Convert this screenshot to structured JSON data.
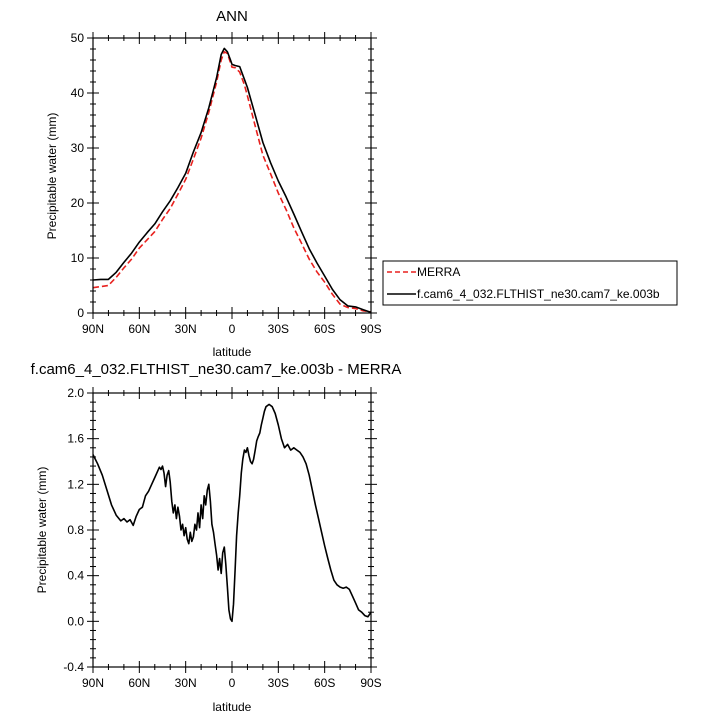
{
  "chart_data": [
    {
      "type": "line",
      "title": "ANN",
      "xlabel": "latitude",
      "ylabel": "Precipitable water (mm)",
      "xlim": [
        90,
        -90
      ],
      "ylim": [
        0,
        50
      ],
      "x_ticks": [
        90,
        60,
        30,
        0,
        -30,
        -60,
        -90
      ],
      "x_tick_labels": [
        "90N",
        "60N",
        "30N",
        "0",
        "30S",
        "60S",
        "90S"
      ],
      "y_ticks": [
        0,
        10,
        20,
        30,
        40,
        50
      ],
      "y_tick_labels": [
        "0",
        "10",
        "20",
        "30",
        "40",
        "50"
      ],
      "legend_position": "right",
      "series": [
        {
          "name": "MERRA",
          "color": "#e8211e",
          "style": "dashed",
          "x": [
            90,
            85,
            80,
            75,
            70,
            65,
            60,
            55,
            50,
            45,
            40,
            35,
            30,
            25,
            20,
            15,
            10,
            7,
            5,
            3,
            1,
            0,
            -2,
            -5,
            -8,
            -10,
            -15,
            -20,
            -25,
            -30,
            -35,
            -40,
            -45,
            -50,
            -55,
            -60,
            -65,
            -70,
            -75,
            -80,
            -85,
            -90
          ],
          "y": [
            4.6,
            4.8,
            5.0,
            6.5,
            8.2,
            9.8,
            11.8,
            13.3,
            14.8,
            17.0,
            19.0,
            21.6,
            24.3,
            28.0,
            31.8,
            36.5,
            42.0,
            46.0,
            47.5,
            47.2,
            45.5,
            44.7,
            44.6,
            43.8,
            41.5,
            39.5,
            34.0,
            28.7,
            25.3,
            21.8,
            18.8,
            15.5,
            12.7,
            9.8,
            7.5,
            5.6,
            3.4,
            1.6,
            1.0,
            0.8,
            0.4,
            0.2
          ]
        },
        {
          "name": "f.cam6_4_032.FLTHIST_ne30.cam7_ke.003b",
          "color": "#000000",
          "style": "solid",
          "x": [
            90,
            85,
            80,
            75,
            70,
            65,
            60,
            55,
            50,
            45,
            40,
            35,
            30,
            25,
            20,
            15,
            10,
            7,
            5,
            3,
            1,
            0,
            -2,
            -5,
            -8,
            -10,
            -15,
            -20,
            -25,
            -30,
            -35,
            -40,
            -45,
            -50,
            -55,
            -60,
            -65,
            -70,
            -75,
            -80,
            -85,
            -90
          ],
          "y": [
            6.0,
            6.1,
            6.1,
            7.4,
            9.2,
            10.9,
            12.9,
            14.6,
            16.2,
            18.4,
            20.4,
            22.8,
            25.4,
            29.3,
            32.8,
            37.3,
            42.8,
            47.0,
            48.1,
            47.5,
            46.0,
            45.2,
            45.0,
            44.8,
            42.5,
            41.0,
            36.0,
            31.0,
            27.3,
            24.0,
            21.1,
            18.0,
            14.8,
            11.7,
            9.1,
            6.7,
            4.3,
            2.4,
            1.3,
            1.1,
            0.6,
            0.1
          ]
        }
      ]
    },
    {
      "type": "line",
      "title": "f.cam6_4_032.FLTHIST_ne30.cam7_ke.003b - MERRA",
      "xlabel": "latitude",
      "ylabel": "Precipitable water (mm)",
      "xlim": [
        90,
        -90
      ],
      "ylim": [
        -0.4,
        2.0
      ],
      "x_ticks": [
        90,
        60,
        30,
        0,
        -30,
        -60,
        -90
      ],
      "x_tick_labels": [
        "90N",
        "60N",
        "30N",
        "0",
        "30S",
        "60S",
        "90S"
      ],
      "y_ticks": [
        -0.4,
        0.0,
        0.4,
        0.8,
        1.2,
        1.6,
        2.0
      ],
      "y_tick_labels": [
        "-0.4",
        "0.0",
        "0.4",
        "0.8",
        "1.2",
        "1.6",
        "2.0"
      ],
      "series": [
        {
          "name": "difference",
          "color": "#000000",
          "style": "solid",
          "x": [
            90,
            87,
            84,
            81,
            78,
            75,
            72,
            70,
            68,
            66,
            64,
            62,
            60,
            58,
            56,
            54,
            52,
            50,
            48,
            47,
            46,
            45,
            44,
            43,
            42,
            41,
            40,
            39,
            38,
            37,
            36,
            35,
            34,
            33,
            32,
            31,
            30,
            29,
            28,
            27,
            26,
            25,
            24,
            23,
            22,
            21,
            20,
            19,
            18,
            17,
            16,
            15,
            14,
            13,
            12,
            11,
            10,
            9,
            8,
            7,
            6,
            5,
            4,
            3,
            2,
            1,
            0,
            -1,
            -2,
            -3,
            -4,
            -5,
            -6,
            -7,
            -8,
            -9,
            -10,
            -11,
            -12,
            -13,
            -14,
            -15,
            -16,
            -17,
            -18,
            -19,
            -20,
            -21,
            -22,
            -24,
            -26,
            -28,
            -30,
            -32,
            -34,
            -36,
            -38,
            -40,
            -42,
            -44,
            -46,
            -48,
            -50,
            -52,
            -54,
            -56,
            -58,
            -60,
            -62,
            -64,
            -66,
            -68,
            -70,
            -72,
            -74,
            -76,
            -78,
            -80,
            -82,
            -84,
            -86,
            -88,
            -90
          ],
          "y": [
            1.46,
            1.38,
            1.28,
            1.15,
            1.02,
            0.93,
            0.88,
            0.9,
            0.87,
            0.89,
            0.84,
            0.92,
            0.98,
            1.0,
            1.1,
            1.14,
            1.2,
            1.26,
            1.32,
            1.35,
            1.33,
            1.36,
            1.3,
            1.18,
            1.28,
            1.32,
            1.22,
            1.05,
            0.95,
            1.02,
            0.9,
            1.0,
            0.92,
            0.8,
            0.85,
            0.75,
            0.82,
            0.72,
            0.68,
            0.78,
            0.7,
            0.74,
            0.85,
            0.8,
            0.95,
            0.82,
            1.02,
            0.9,
            1.1,
            1.02,
            1.15,
            1.2,
            1.05,
            0.85,
            0.78,
            0.68,
            0.58,
            0.45,
            0.55,
            0.42,
            0.6,
            0.65,
            0.5,
            0.3,
            0.1,
            0.02,
            0.0,
            0.15,
            0.45,
            0.75,
            0.95,
            1.1,
            1.3,
            1.42,
            1.5,
            1.48,
            1.52,
            1.45,
            1.4,
            1.38,
            1.42,
            1.5,
            1.58,
            1.62,
            1.65,
            1.72,
            1.78,
            1.84,
            1.88,
            1.9,
            1.88,
            1.82,
            1.72,
            1.6,
            1.52,
            1.55,
            1.5,
            1.52,
            1.5,
            1.48,
            1.44,
            1.38,
            1.28,
            1.15,
            1.02,
            0.9,
            0.78,
            0.66,
            0.55,
            0.45,
            0.36,
            0.32,
            0.3,
            0.29,
            0.3,
            0.28,
            0.22,
            0.16,
            0.1,
            0.08,
            0.05,
            0.04,
            0.08
          ]
        }
      ]
    }
  ]
}
